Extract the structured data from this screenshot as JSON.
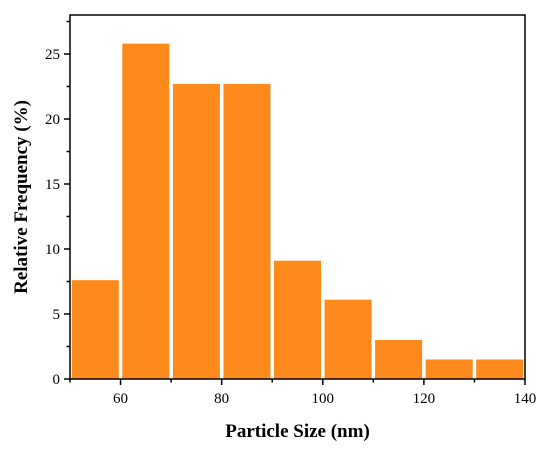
{
  "chart_data": {
    "type": "bar",
    "title": "",
    "xlabel": "Particle Size (nm)",
    "ylabel": "Relative Frequency (%)",
    "xlim": [
      50,
      140
    ],
    "ylim": [
      0,
      28
    ],
    "x_ticks": [
      60,
      80,
      100,
      120,
      140
    ],
    "y_ticks": [
      0,
      5,
      10,
      15,
      20,
      25
    ],
    "bin_width": 10,
    "bins": [
      {
        "center": 55,
        "value": 7.6
      },
      {
        "center": 65,
        "value": 25.8
      },
      {
        "center": 75,
        "value": 22.7
      },
      {
        "center": 85,
        "value": 22.7
      },
      {
        "center": 95,
        "value": 9.1
      },
      {
        "center": 105,
        "value": 6.1
      },
      {
        "center": 115,
        "value": 3.0
      },
      {
        "center": 125,
        "value": 1.5
      },
      {
        "center": 135,
        "value": 1.5
      }
    ],
    "bar_color": "#ff8a1c",
    "grid": false,
    "legend": "none"
  }
}
